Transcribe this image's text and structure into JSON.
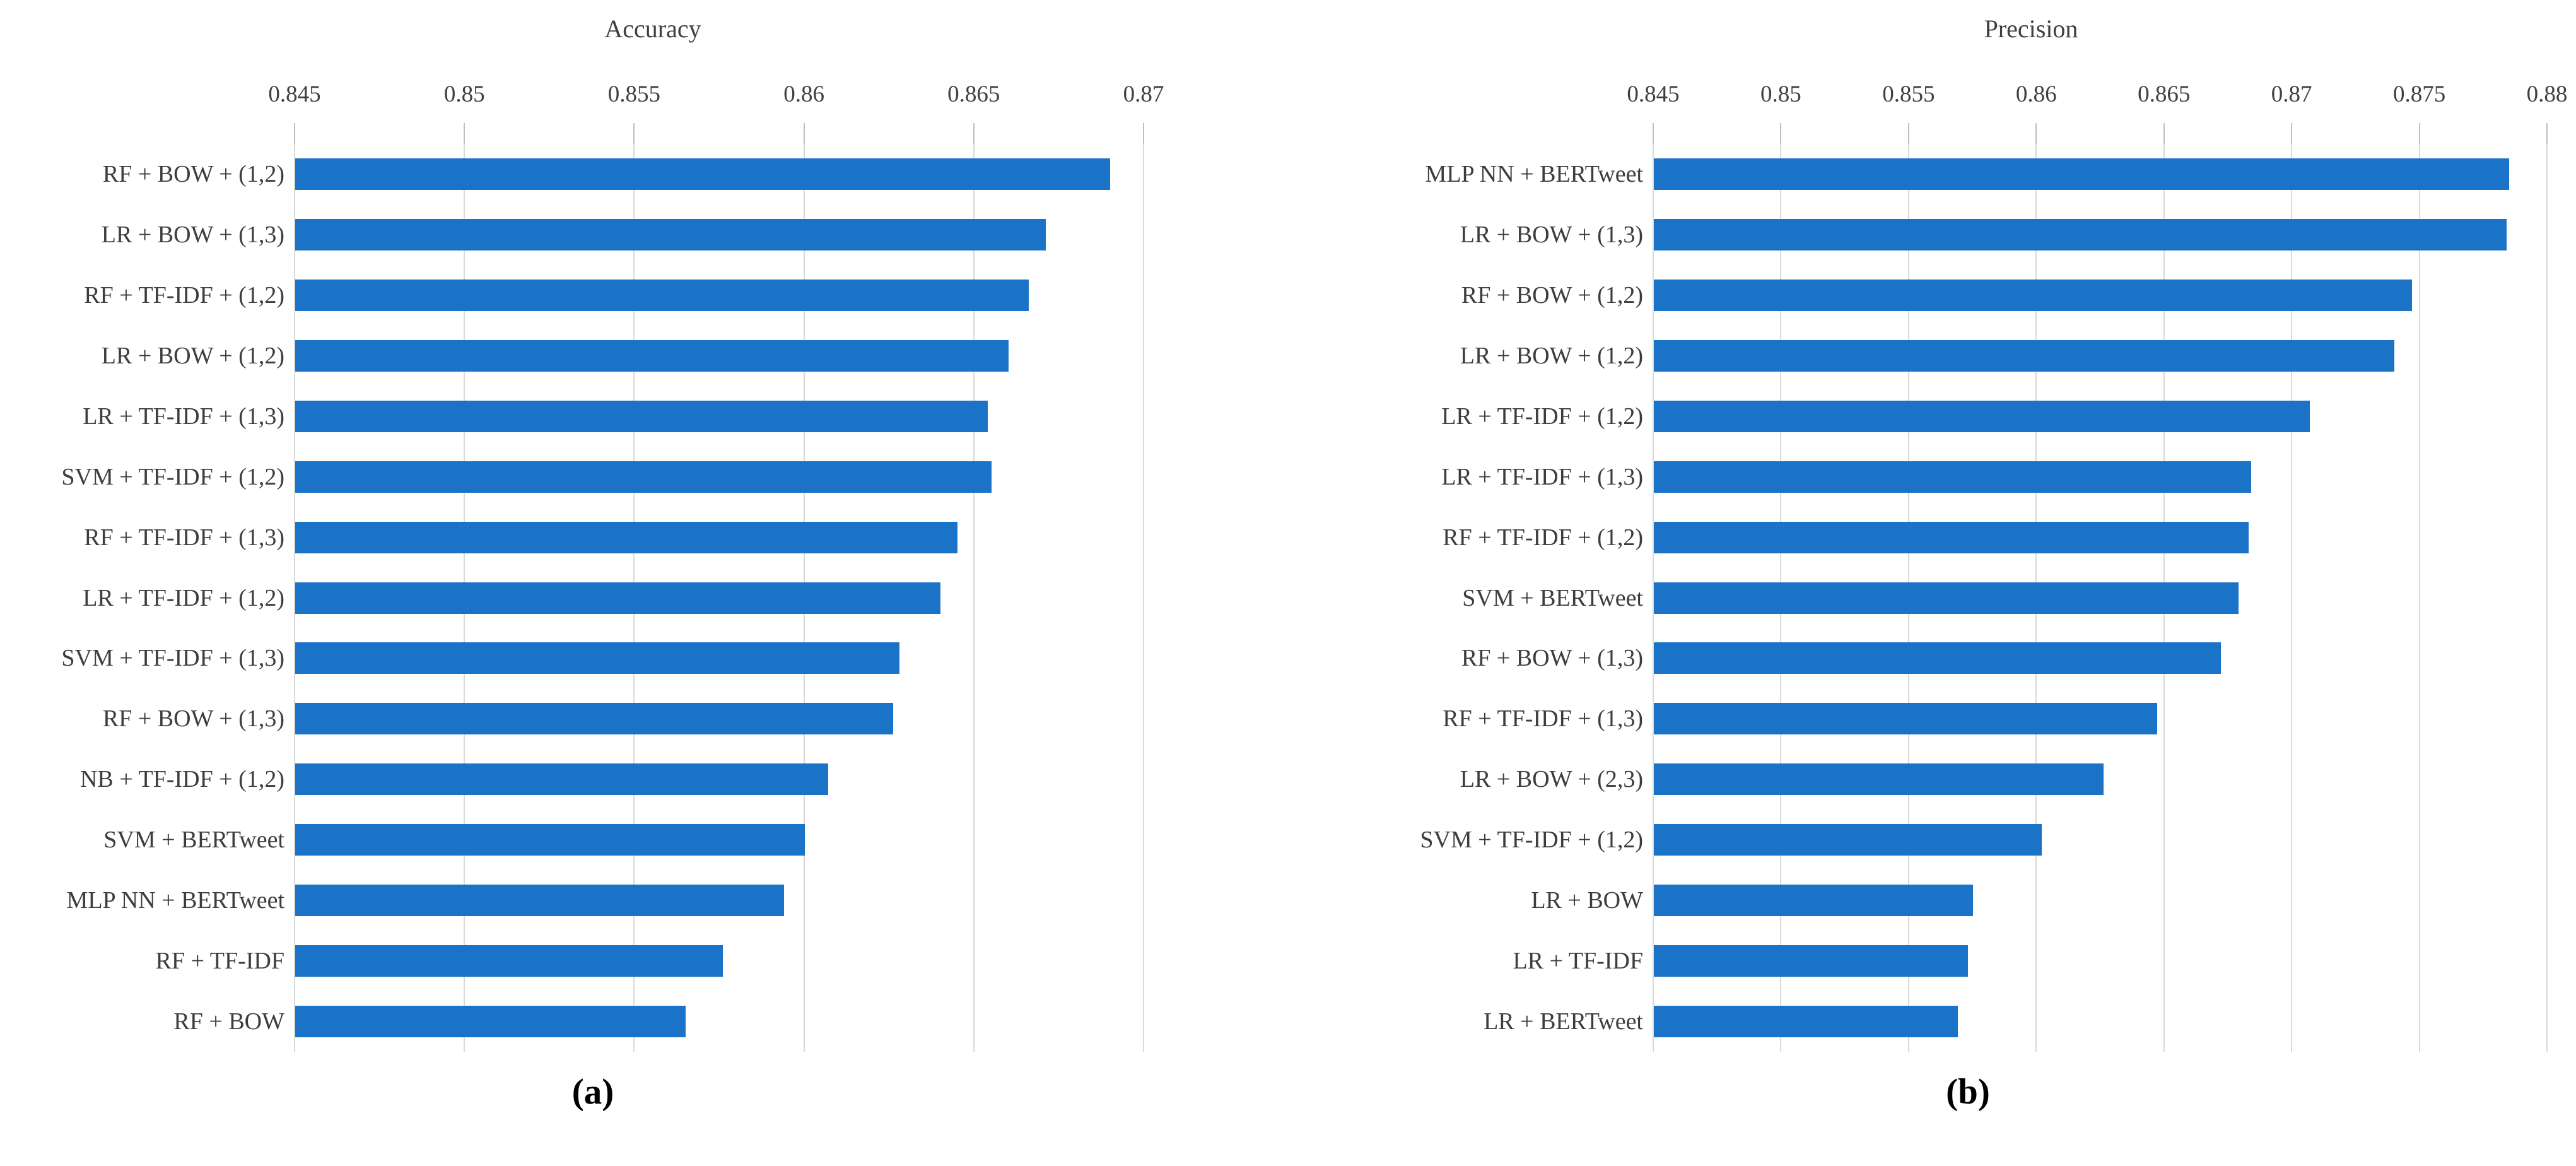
{
  "figure": {
    "background": "#ffffff",
    "panel_count": 2
  },
  "colors": {
    "bar": "#1b73c8",
    "gridline": "#d9d9d9",
    "tick_mark": "#bfbfbf",
    "axis_text": "#404040",
    "title_text": "#3f3f3f",
    "caption_text": "#000000"
  },
  "chart_data": [
    {
      "type": "bar",
      "orientation": "horizontal",
      "title": "Accuracy",
      "caption": "(a)",
      "xlabel": "",
      "ylabel": "",
      "xlim": [
        0.845,
        0.87
      ],
      "xticks": [
        0.845,
        0.85,
        0.855,
        0.86,
        0.865,
        0.87
      ],
      "xtick_labels": [
        "0.845",
        "0.85",
        "0.855",
        "0.86",
        "0.865",
        "0.87"
      ],
      "grid": true,
      "legend": false,
      "categories": [
        "RF + BOW + (1,2)",
        "LR + BOW + (1,3)",
        "RF + TF-IDF + (1,2)",
        "LR + BOW + (1,2)",
        "LR + TF-IDF + (1,3)",
        "SVM + TF-IDF + (1,2)",
        "RF + TF-IDF + (1,3)",
        "LR + TF-IDF + (1,2)",
        "SVM + TF-IDF + (1,3)",
        "RF + BOW + (1,3)",
        "NB + TF-IDF + (1,2)",
        "SVM + BERTweet",
        "MLP NN + BERTweet",
        "RF + TF-IDF",
        "RF + BOW"
      ],
      "values": [
        0.869,
        0.8671,
        0.8666,
        0.866,
        0.8654,
        0.8655,
        0.8645,
        0.864,
        0.8628,
        0.8626,
        0.8607,
        0.86,
        0.8594,
        0.8576,
        0.8565
      ]
    },
    {
      "type": "bar",
      "orientation": "horizontal",
      "title": "Precision",
      "caption": "(b)",
      "xlabel": "",
      "ylabel": "",
      "xlim": [
        0.845,
        0.88
      ],
      "xticks": [
        0.845,
        0.85,
        0.855,
        0.86,
        0.865,
        0.87,
        0.875,
        0.88
      ],
      "xtick_labels": [
        "0.845",
        "0.85",
        "0.855",
        "0.86",
        "0.865",
        "0.87",
        "0.875",
        "0.88"
      ],
      "grid": true,
      "legend": false,
      "categories": [
        "MLP NN + BERTweet",
        "LR + BOW + (1,3)",
        "RF + BOW + (1,2)",
        "LR + BOW + (1,2)",
        "LR + TF-IDF + (1,2)",
        "LR + TF-IDF + (1,3)",
        "RF + TF-IDF + (1,2)",
        "SVM + BERTweet",
        "RF + BOW + (1,3)",
        "RF + TF-IDF + (1,3)",
        "LR + BOW + (2,3)",
        "SVM + TF-IDF + (1,2)",
        "LR + BOW",
        "LR + TF-IDF",
        "LR + BERTweet"
      ],
      "values": [
        0.8785,
        0.8784,
        0.8747,
        0.874,
        0.8707,
        0.8684,
        0.8683,
        0.8679,
        0.8672,
        0.8647,
        0.8626,
        0.8602,
        0.8575,
        0.8573,
        0.8569
      ]
    }
  ]
}
